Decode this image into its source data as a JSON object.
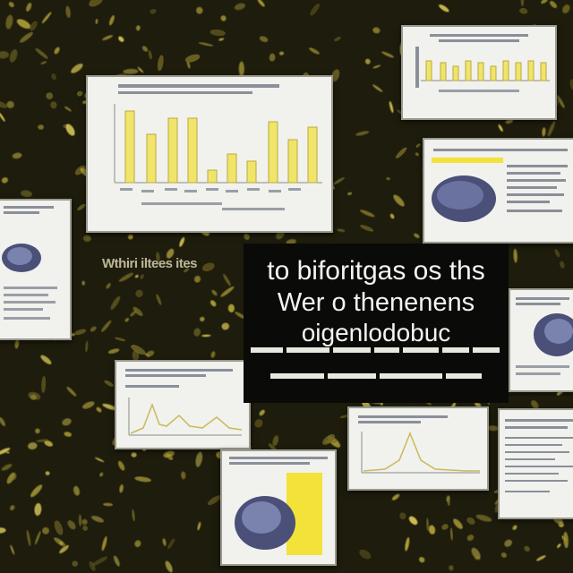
{
  "title_panel": {
    "line1": "to biforitgas os ths",
    "line2": "Wer o thenenens",
    "line3": "oigenlodobuc"
  },
  "colors": {
    "background": "#1e1c0c",
    "foliage": "#b8a83a",
    "card": "#f1f1ee",
    "bar": "#f0e46a",
    "accent_yellow": "#f2e23a",
    "blob": "#5a6290"
  },
  "cards": [
    {
      "kind": "bar-chart",
      "name": "card-top-center"
    },
    {
      "kind": "bar-chart",
      "name": "card-top-right"
    },
    {
      "kind": "image-text",
      "name": "card-right-upper"
    },
    {
      "kind": "image-text",
      "name": "card-left"
    },
    {
      "kind": "image-text",
      "name": "card-right-middle"
    },
    {
      "kind": "line-chart",
      "name": "card-bottom-left"
    },
    {
      "kind": "line-chart",
      "name": "card-bottom-center"
    },
    {
      "kind": "text",
      "name": "card-bottom-right"
    },
    {
      "kind": "image-yellow",
      "name": "card-bottom-image"
    }
  ],
  "icons": [
    "leaf-pattern",
    "blob-image",
    "bar-chart-icon",
    "line-chart-icon"
  ]
}
